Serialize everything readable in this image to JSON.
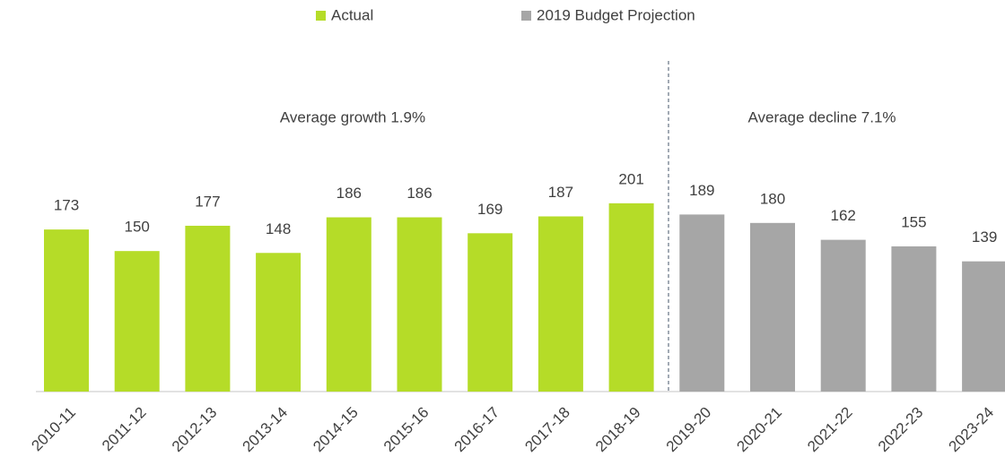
{
  "chart_data": {
    "type": "bar",
    "categories": [
      "2010-11",
      "2011-12",
      "2012-13",
      "2013-14",
      "2014-15",
      "2015-16",
      "2016-17",
      "2017-18",
      "2018-19",
      "2019-20",
      "2020-21",
      "2021-22",
      "2022-23",
      "2023-24"
    ],
    "series": [
      {
        "name": "Actual",
        "color": "#b5dc28",
        "values": [
          173,
          150,
          177,
          148,
          186,
          186,
          169,
          187,
          201,
          null,
          null,
          null,
          null,
          null
        ]
      },
      {
        "name": "2019 Budget Projection",
        "color": "#a6a6a6",
        "values": [
          null,
          null,
          null,
          null,
          null,
          null,
          null,
          null,
          null,
          189,
          180,
          162,
          155,
          139
        ]
      }
    ],
    "annotations": [
      "Average growth 1.9%",
      "Average decline 7.1%"
    ],
    "ylim": [
      0,
      220
    ],
    "legend": "top"
  }
}
